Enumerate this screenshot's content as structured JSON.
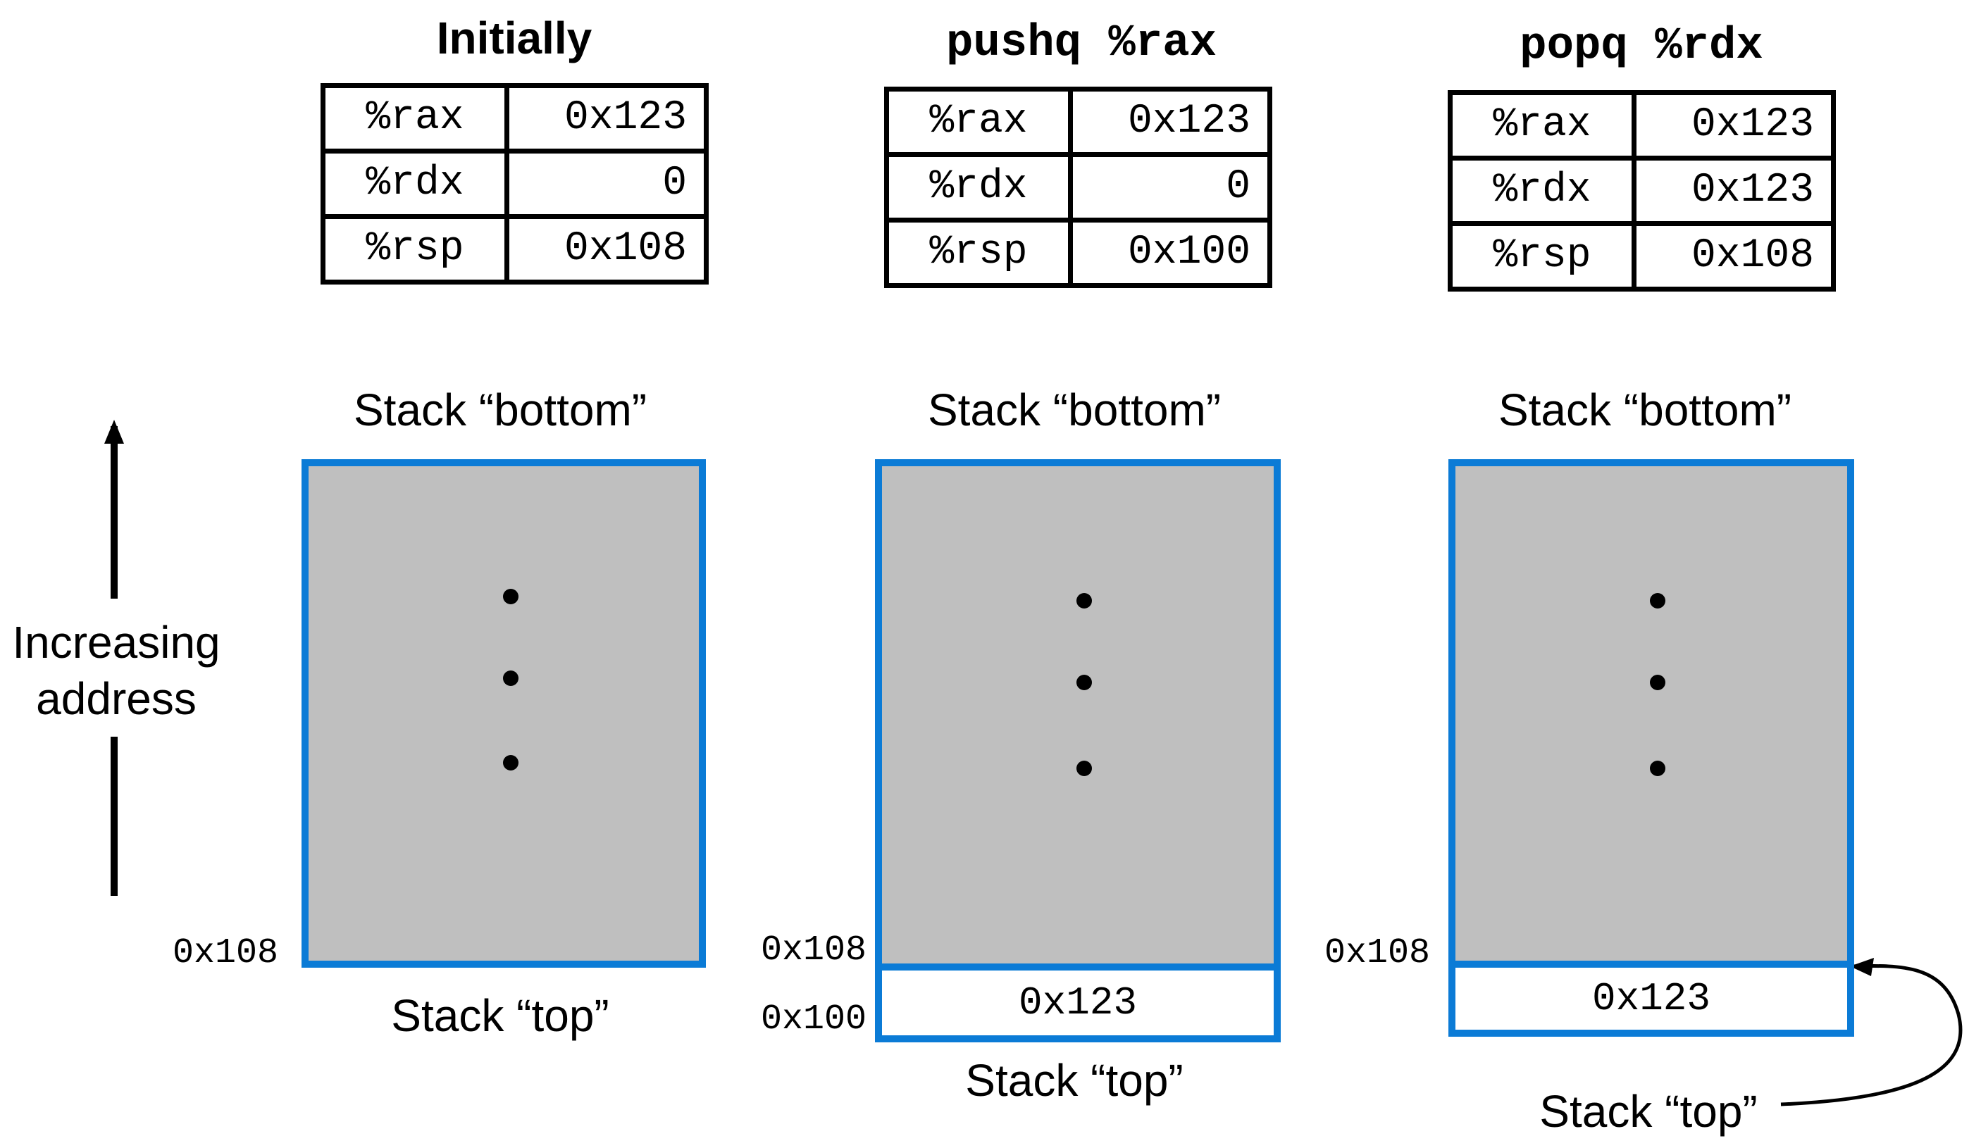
{
  "axis": {
    "label_line1": "Increasing",
    "label_line2": "address"
  },
  "panels": [
    {
      "title": "Initially",
      "registers": [
        {
          "name": "%rax",
          "value": "0x123"
        },
        {
          "name": "%rdx",
          "value": "0"
        },
        {
          "name": "%rsp",
          "value": "0x108"
        }
      ],
      "bottom_label": "Stack “bottom”",
      "top_label": "Stack “top”",
      "addr_main": "0x108"
    },
    {
      "title": "pushq %rax",
      "registers": [
        {
          "name": "%rax",
          "value": "0x123"
        },
        {
          "name": "%rdx",
          "value": "0"
        },
        {
          "name": "%rsp",
          "value": "0x100"
        }
      ],
      "bottom_label": "Stack “bottom”",
      "top_label": "Stack “top”",
      "addr_main": "0x108",
      "addr_slot": "0x100",
      "slot_value": "0x123"
    },
    {
      "title": "popq %rdx",
      "registers": [
        {
          "name": "%rax",
          "value": "0x123"
        },
        {
          "name": "%rdx",
          "value": "0x123"
        },
        {
          "name": "%rsp",
          "value": "0x108"
        }
      ],
      "bottom_label": "Stack “bottom”",
      "top_label": "Stack “top”",
      "addr_main": "0x108",
      "slot_value": "0x123"
    }
  ]
}
